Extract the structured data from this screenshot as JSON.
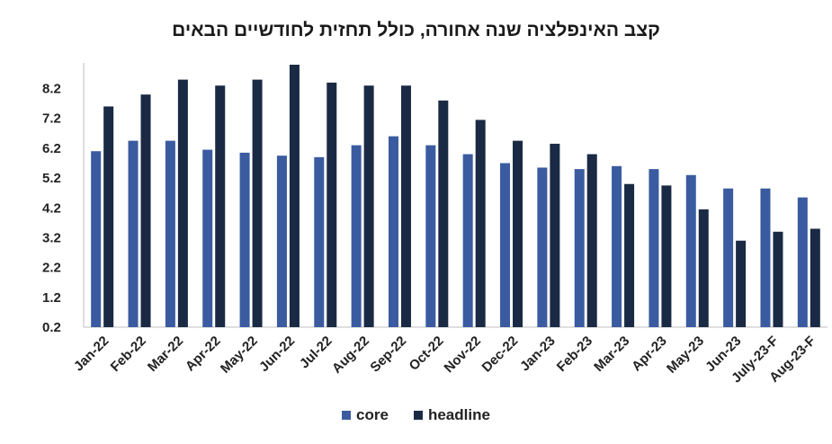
{
  "chart_data": {
    "type": "bar",
    "title": "קצב האינפלציה שנה אחורה, כולל תחזית לחודשיים הבאים",
    "xlabel": "",
    "ylabel": "",
    "ylim": [
      0.2,
      9.0
    ],
    "yticks": [
      "0.2",
      "1.2",
      "2.2",
      "3.2",
      "4.2",
      "5.2",
      "6.2",
      "7.2",
      "8.2"
    ],
    "categories": [
      "Jan-22",
      "Feb-22",
      "Mar-22",
      "Apr-22",
      "May-22",
      "Jun-22",
      "Jul-22",
      "Aug-22",
      "Sep-22",
      "Oct-22",
      "Nov-22",
      "Dec-22",
      "Jan-23",
      "Feb-23",
      "Mar-23",
      "Apr-23",
      "May-23",
      "Jun-23",
      "July-23-F",
      "Aug-23-F"
    ],
    "series": [
      {
        "name": "core",
        "color": "#3a5ba0",
        "values": [
          6.1,
          6.45,
          6.45,
          6.15,
          6.05,
          5.95,
          5.9,
          6.3,
          6.6,
          6.3,
          6.0,
          5.7,
          5.55,
          5.5,
          5.6,
          5.5,
          5.3,
          4.85,
          4.85,
          4.55
        ]
      },
      {
        "name": "headline",
        "color": "#1a2a44",
        "values": [
          7.6,
          8.0,
          8.5,
          8.3,
          8.5,
          9.0,
          8.4,
          8.3,
          8.3,
          7.8,
          7.15,
          6.45,
          6.35,
          6.0,
          5.0,
          4.95,
          4.15,
          3.1,
          3.4,
          3.5
        ]
      }
    ],
    "grid": false,
    "legend": "bottom-center"
  }
}
